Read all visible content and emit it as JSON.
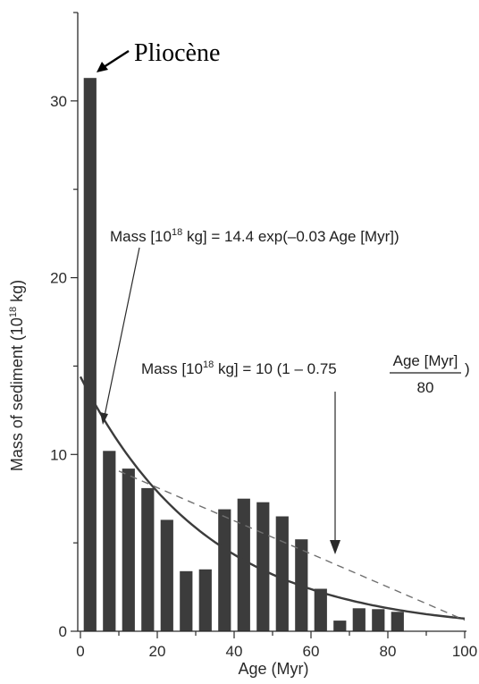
{
  "chart_data": {
    "type": "bar",
    "xlabel": "Age (Myr)",
    "ylabel_main": "Mass of sediment (10",
    "ylabel_sup": "18",
    "ylabel_tail": " kg)",
    "xlim": [
      0,
      100
    ],
    "ylim": [
      0,
      35
    ],
    "x_ticks": [
      0,
      20,
      40,
      60,
      80,
      100
    ],
    "y_ticks": [
      0,
      10,
      20,
      30
    ],
    "grid": false,
    "bar_width": 3.3,
    "bar_color": "#3c3c3c",
    "series": [
      {
        "x": [
          2.5,
          7.5,
          12.5,
          17.5,
          22.5,
          27.5,
          32.5,
          37.5,
          42.5,
          47.5,
          52.5,
          57.5,
          62.5,
          67.5,
          72.5,
          77.5,
          82.5
        ],
        "values": [
          31.3,
          10.2,
          9.2,
          8.1,
          6.3,
          3.4,
          3.5,
          6.9,
          7.5,
          7.3,
          6.5,
          5.2,
          2.4,
          0.6,
          1.3,
          1.25,
          1.1
        ]
      }
    ],
    "exp_curve": {
      "a": 14.4,
      "b": -0.03,
      "color": "#3c3c3c",
      "style": "solid"
    },
    "linear_curve": {
      "a": 10,
      "b": 0.75,
      "c": 80,
      "color": "#6f6f6f",
      "style": "dashed"
    },
    "annotations": {
      "pliocene": "Pliocène",
      "exp_eq": {
        "prefix": "Mass [10",
        "sup": "18",
        "suffix": " kg] = 14.4 exp(–0.03 Age [Myr])"
      },
      "lin_eq": {
        "prefix": "Mass [10",
        "sup": "18",
        "mid": " kg] = 10 (1 – 0.75",
        "numerator": "Age [Myr]",
        "denominator": "80",
        "close": ")"
      }
    }
  }
}
